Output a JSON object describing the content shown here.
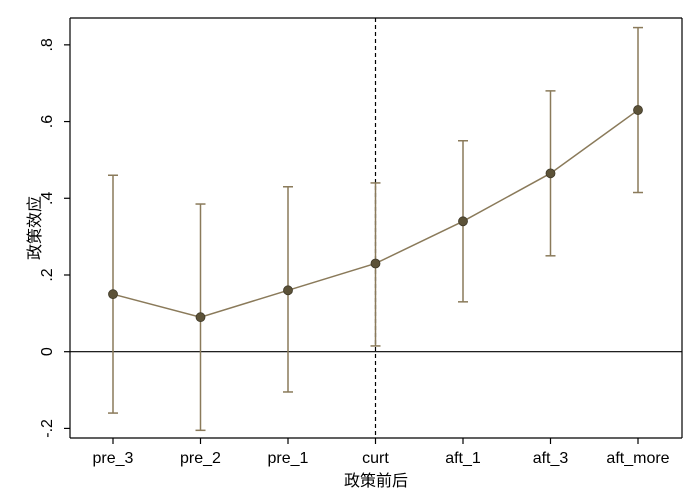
{
  "chart_data": {
    "type": "scatter",
    "title": "",
    "xlabel": "政策前后",
    "ylabel": "政策效应",
    "categories": [
      "pre_3",
      "pre_2",
      "pre_1",
      "curt",
      "aft_1",
      "aft_3",
      "aft_more"
    ],
    "series": [
      {
        "values": [
          0.15,
          0.09,
          0.16,
          0.23,
          0.34,
          0.465,
          0.63
        ],
        "ci_lower": [
          -0.16,
          -0.205,
          -0.105,
          0.015,
          0.13,
          0.25,
          0.415
        ],
        "ci_upper": [
          0.46,
          0.385,
          0.43,
          0.44,
          0.55,
          0.68,
          0.845
        ]
      }
    ],
    "ylim": [
      -0.225,
      0.87
    ],
    "yticks": [
      -0.2,
      0,
      0.2,
      0.4,
      0.6,
      0.8
    ],
    "ytick_labels": [
      "-.2",
      "0",
      ".2",
      ".4",
      ".6",
      ".8"
    ],
    "reference_line_y": 0,
    "reference_line_x_category": "curt",
    "grid": false,
    "colors": {
      "series": "#8a7a5a",
      "marker": "#5c5238",
      "reference": "#000000"
    }
  }
}
